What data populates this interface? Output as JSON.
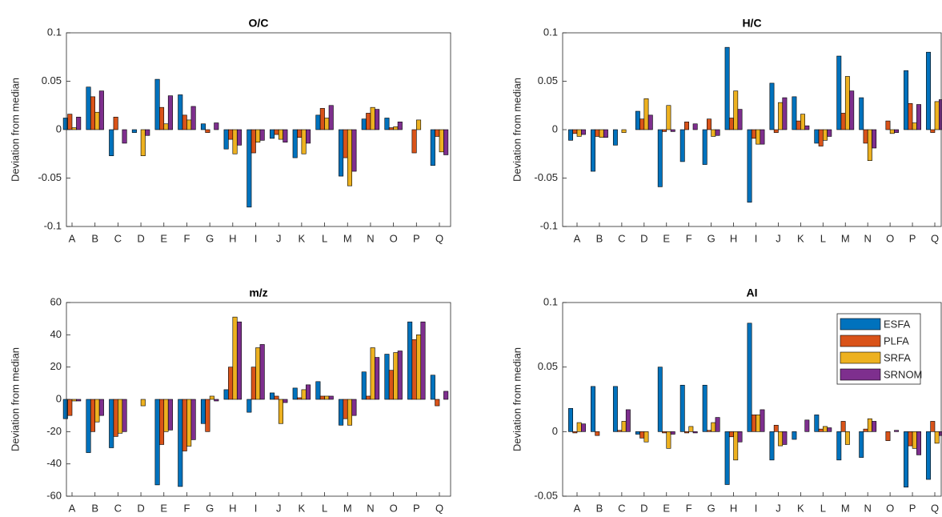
{
  "chart_data": [
    {
      "type": "bar",
      "title": "O/C",
      "ylabel": "Deviation from median",
      "categories": [
        "A",
        "B",
        "C",
        "D",
        "E",
        "F",
        "G",
        "H",
        "I",
        "J",
        "K",
        "L",
        "M",
        "N",
        "O",
        "P",
        "Q"
      ],
      "ylim": [
        -0.1,
        0.1
      ],
      "yticks": [
        -0.1,
        -0.05,
        0,
        0.05,
        0.1
      ],
      "series": [
        {
          "color": "#0072bd",
          "values": [
            0.012,
            0.044,
            -0.027,
            -0.003,
            0.052,
            0.036,
            0.006,
            -0.02,
            -0.08,
            -0.009,
            -0.029,
            0.015,
            -0.048,
            0.011,
            0.012,
            0,
            -0.037
          ]
        },
        {
          "color": "#d95319",
          "values": [
            0.016,
            0.034,
            0.013,
            0,
            0.023,
            0.015,
            -0.003,
            -0.01,
            -0.024,
            -0.005,
            -0.008,
            0.022,
            -0.029,
            0.017,
            0.002,
            -0.024,
            -0.007
          ]
        },
        {
          "color": "#edb120",
          "values": [
            0.002,
            0.018,
            0,
            -0.027,
            0.006,
            0.01,
            0,
            -0.025,
            -0.013,
            -0.01,
            -0.025,
            0.012,
            -0.058,
            0.023,
            0.003,
            0.01,
            -0.023
          ]
        },
        {
          "color": "#7e2f8e",
          "values": [
            0.013,
            0.04,
            -0.014,
            -0.006,
            0.035,
            0.024,
            0.007,
            -0.016,
            -0.011,
            -0.013,
            -0.014,
            0.025,
            -0.043,
            0.021,
            0.008,
            0,
            -0.026
          ]
        }
      ]
    },
    {
      "type": "bar",
      "title": "H/C",
      "ylabel": "Deviation from median",
      "categories": [
        "A",
        "B",
        "C",
        "D",
        "E",
        "F",
        "G",
        "H",
        "I",
        "J",
        "K",
        "L",
        "M",
        "N",
        "O",
        "P",
        "Q"
      ],
      "ylim": [
        -0.1,
        0.1
      ],
      "yticks": [
        -0.1,
        -0.05,
        0,
        0.05,
        0.1
      ],
      "series": [
        {
          "color": "#0072bd",
          "values": [
            -0.011,
            -0.043,
            -0.016,
            0.019,
            -0.059,
            -0.033,
            -0.036,
            0.085,
            -0.075,
            0.048,
            0.034,
            -0.014,
            0.076,
            0.033,
            0,
            0.061,
            0.08
          ]
        },
        {
          "color": "#d95319",
          "values": [
            -0.004,
            -0.007,
            0,
            0.011,
            -0.002,
            0.008,
            0.011,
            0.012,
            -0.009,
            -0.003,
            0.009,
            -0.017,
            0.017,
            -0.014,
            0.009,
            0.027,
            -0.003
          ]
        },
        {
          "color": "#edb120",
          "values": [
            -0.007,
            -0.008,
            -0.003,
            0.032,
            0.025,
            0,
            -0.007,
            0.04,
            -0.015,
            0.028,
            0.016,
            -0.011,
            0.055,
            -0.032,
            -0.004,
            0.007,
            0.029
          ]
        },
        {
          "color": "#7e2f8e",
          "values": [
            -0.005,
            -0.008,
            0,
            0.015,
            -0.002,
            0.006,
            -0.006,
            0.021,
            -0.015,
            0.033,
            0.004,
            -0.007,
            0.04,
            -0.019,
            -0.003,
            0.026,
            0.031
          ]
        }
      ]
    },
    {
      "type": "bar",
      "title": "m/z",
      "ylabel": "Deviation from median",
      "categories": [
        "A",
        "B",
        "C",
        "D",
        "E",
        "F",
        "G",
        "H",
        "I",
        "J",
        "K",
        "L",
        "M",
        "N",
        "O",
        "P",
        "Q"
      ],
      "ylim": [
        -60,
        60
      ],
      "yticks": [
        -60,
        -40,
        -20,
        0,
        20,
        40,
        60
      ],
      "series": [
        {
          "color": "#0072bd",
          "values": [
            -12,
            -33,
            -30,
            0,
            -53,
            -54,
            -15,
            6,
            -8,
            4,
            7,
            11,
            -16,
            17,
            28,
            48,
            15
          ]
        },
        {
          "color": "#d95319",
          "values": [
            -10,
            -20,
            -23,
            0,
            -28,
            -32,
            -20,
            20,
            20,
            2,
            1,
            2,
            -12,
            2,
            18,
            37,
            -4
          ]
        },
        {
          "color": "#edb120",
          "values": [
            -1,
            -14,
            -21,
            -4,
            -20,
            -29,
            2,
            51,
            32,
            -15,
            6,
            2,
            -16,
            32,
            29,
            40,
            0
          ]
        },
        {
          "color": "#7e2f8e",
          "values": [
            -1,
            -10,
            -20,
            0,
            -19,
            -25,
            -1,
            48,
            34,
            -2,
            9,
            2,
            -10,
            26,
            30,
            48,
            5
          ]
        }
      ]
    },
    {
      "type": "bar",
      "title": "AI",
      "ylabel": "Deviation from median",
      "categories": [
        "A",
        "B",
        "C",
        "D",
        "E",
        "F",
        "G",
        "H",
        "I",
        "J",
        "K",
        "L",
        "M",
        "N",
        "O",
        "P",
        "Q"
      ],
      "ylim": [
        -0.05,
        0.1
      ],
      "yticks": [
        -0.05,
        0,
        0.05,
        0.1
      ],
      "legend": "northeast",
      "series": [
        {
          "name": "ESFA",
          "color": "#0072bd",
          "values": [
            0.018,
            0.035,
            0.035,
            -0.002,
            0.05,
            0.036,
            0.036,
            -0.041,
            0.084,
            -0.022,
            -0.006,
            0.013,
            -0.022,
            -0.02,
            0,
            -0.043,
            -0.037
          ]
        },
        {
          "name": "PLFA",
          "color": "#d95319",
          "values": [
            -0.001,
            -0.003,
            0.001,
            -0.005,
            -0.001,
            -0.001,
            0.001,
            -0.004,
            0.013,
            0.005,
            0,
            0.002,
            0.008,
            0.002,
            -0.007,
            -0.011,
            0.008
          ]
        },
        {
          "name": "SRFA",
          "color": "#edb120",
          "values": [
            0.007,
            0,
            0.008,
            -0.008,
            -0.013,
            0.004,
            0.007,
            -0.022,
            0.013,
            -0.011,
            0,
            0.004,
            -0.01,
            0.01,
            0,
            -0.013,
            -0.009
          ]
        },
        {
          "name": "SRNOM",
          "color": "#7e2f8e",
          "values": [
            0.006,
            0,
            0.017,
            0,
            -0.002,
            -0.001,
            0.011,
            -0.008,
            0.017,
            -0.01,
            0.009,
            0.003,
            0,
            0.008,
            0.001,
            -0.018,
            -0.003
          ]
        }
      ]
    }
  ]
}
